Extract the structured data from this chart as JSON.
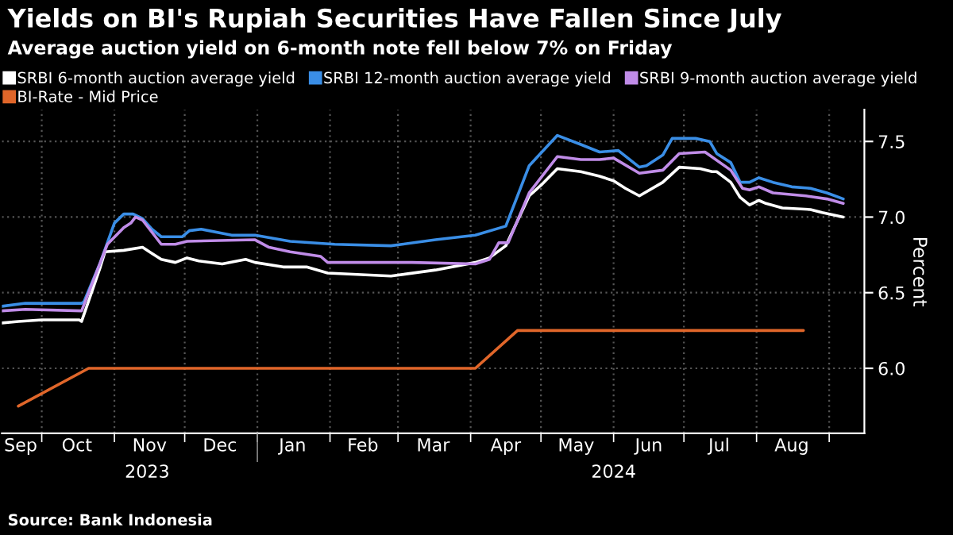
{
  "chart_data": {
    "type": "line",
    "title": "Yields on BI's Rupiah Securities Have Fallen Since July",
    "subtitle": "Average auction yield on 6-month note fell below 7% on Friday",
    "ylabel": "Percent",
    "annotations": [
      "Source: Bank Indonesia"
    ],
    "series": [
      {
        "name": "SRBI 6-month auction average yield",
        "color": "#ffffff",
        "x": [
          "2023-09-14",
          "2023-09-21",
          "2023-10-01",
          "2023-10-17",
          "2023-10-18",
          "2023-10-26",
          "2023-10-28",
          "2023-11-05",
          "2023-11-13",
          "2023-11-17",
          "2023-11-21",
          "2023-11-27",
          "2023-12-02",
          "2023-12-07",
          "2023-12-17",
          "2023-12-27",
          "2023-12-31",
          "2024-01-12",
          "2024-01-22",
          "2024-01-31",
          "2024-02-27",
          "2024-03-17",
          "2024-04-03",
          "2024-04-09",
          "2024-04-16",
          "2024-04-26",
          "2024-05-01",
          "2024-05-08",
          "2024-05-18",
          "2024-05-26",
          "2024-06-01",
          "2024-06-06",
          "2024-06-12",
          "2024-06-22",
          "2024-06-29",
          "2024-07-08",
          "2024-07-13",
          "2024-07-15",
          "2024-07-21",
          "2024-07-25",
          "2024-07-29",
          "2024-08-02",
          "2024-08-05",
          "2024-08-12",
          "2024-08-24",
          "2024-08-29",
          "2024-09-07"
        ],
        "values": [
          6.3,
          6.31,
          6.32,
          6.32,
          6.31,
          6.67,
          6.77,
          6.78,
          6.8,
          6.76,
          6.72,
          6.7,
          6.73,
          6.71,
          6.69,
          6.72,
          6.7,
          6.67,
          6.67,
          6.63,
          6.61,
          6.65,
          6.7,
          6.73,
          6.81,
          7.14,
          7.21,
          7.32,
          7.3,
          7.27,
          7.24,
          7.19,
          7.14,
          7.23,
          7.33,
          7.32,
          7.3,
          7.3,
          7.23,
          7.13,
          7.08,
          7.11,
          7.09,
          7.06,
          7.05,
          7.03,
          7.0
        ]
      },
      {
        "name": "SRBI 12-month auction average yield",
        "color": "#3a8ee6",
        "x": [
          "2023-09-14",
          "2023-09-24",
          "2023-10-18",
          "2023-10-19",
          "2023-10-26",
          "2023-11-01",
          "2023-11-05",
          "2023-11-09",
          "2023-11-13",
          "2023-11-17",
          "2023-11-21",
          "2023-11-30",
          "2023-12-03",
          "2023-12-08",
          "2023-12-21",
          "2023-12-31",
          "2024-01-15",
          "2024-02-03",
          "2024-02-27",
          "2024-03-17",
          "2024-04-03",
          "2024-04-16",
          "2024-04-26",
          "2024-05-08",
          "2024-05-18",
          "2024-05-26",
          "2024-06-03",
          "2024-06-12",
          "2024-06-15",
          "2024-06-22",
          "2024-06-26",
          "2024-07-06",
          "2024-07-12",
          "2024-07-15",
          "2024-07-21",
          "2024-07-25",
          "2024-07-29",
          "2024-08-02",
          "2024-08-08",
          "2024-08-16",
          "2024-08-24",
          "2024-08-31",
          "2024-09-07"
        ],
        "values": [
          6.41,
          6.43,
          6.43,
          6.44,
          6.7,
          6.96,
          7.02,
          7.02,
          6.99,
          6.92,
          6.87,
          6.87,
          6.91,
          6.92,
          6.88,
          6.88,
          6.84,
          6.82,
          6.81,
          6.85,
          6.88,
          6.94,
          7.34,
          7.54,
          7.48,
          7.43,
          7.44,
          7.33,
          7.34,
          7.41,
          7.52,
          7.52,
          7.5,
          7.42,
          7.36,
          7.23,
          7.23,
          7.26,
          7.23,
          7.2,
          7.19,
          7.16,
          7.12
        ]
      },
      {
        "name": "SRBI 9-month auction average yield",
        "color": "#c08ce8",
        "x": [
          "2023-09-14",
          "2023-09-24",
          "2023-10-18",
          "2023-10-26",
          "2023-10-29",
          "2023-11-05",
          "2023-11-08",
          "2023-11-10",
          "2023-11-13",
          "2023-11-17",
          "2023-11-21",
          "2023-11-27",
          "2023-12-02",
          "2023-12-31",
          "2024-01-06",
          "2024-01-15",
          "2024-01-28",
          "2024-01-31",
          "2024-03-07",
          "2024-04-03",
          "2024-04-09",
          "2024-04-13",
          "2024-04-17",
          "2024-04-26",
          "2024-05-08",
          "2024-05-18",
          "2024-05-26",
          "2024-06-01",
          "2024-06-12",
          "2024-06-22",
          "2024-06-29",
          "2024-07-10",
          "2024-07-21",
          "2024-07-26",
          "2024-07-29",
          "2024-08-02",
          "2024-08-08",
          "2024-08-22",
          "2024-08-31",
          "2024-09-07"
        ],
        "values": [
          6.38,
          6.39,
          6.38,
          6.7,
          6.82,
          6.93,
          6.96,
          7.0,
          6.98,
          6.9,
          6.82,
          6.82,
          6.84,
          6.85,
          6.8,
          6.77,
          6.74,
          6.7,
          6.7,
          6.69,
          6.72,
          6.83,
          6.83,
          7.16,
          7.4,
          7.38,
          7.38,
          7.39,
          7.29,
          7.31,
          7.42,
          7.43,
          7.31,
          7.19,
          7.18,
          7.2,
          7.16,
          7.14,
          7.12,
          7.09
        ]
      },
      {
        "name": "BI-Rate - Mid Price",
        "color": "#e0662a",
        "x": [
          "2023-09-21",
          "2023-10-21",
          "2024-04-03",
          "2024-04-21",
          "2024-08-21"
        ],
        "values": [
          5.75,
          6.0,
          6.0,
          6.25,
          6.25
        ]
      }
    ],
    "xlim": [
      "2023-09-14",
      "2024-09-16"
    ],
    "xticks": [
      {
        "value": "2023-09-22",
        "label": "Sep"
      },
      {
        "value": "2023-10-01",
        "label": null
      },
      {
        "value": "2023-10-16",
        "label": "Oct"
      },
      {
        "value": "2023-11-01",
        "label": null
      },
      {
        "value": "2023-11-16",
        "label": "Nov"
      },
      {
        "value": "2023-12-01",
        "label": null
      },
      {
        "value": "2023-12-16",
        "label": "Dec"
      },
      {
        "value": "2024-01-01",
        "label": null
      },
      {
        "value": "2024-01-16",
        "label": "Jan"
      },
      {
        "value": "2024-02-01",
        "label": null
      },
      {
        "value": "2024-02-15",
        "label": "Feb"
      },
      {
        "value": "2024-03-01",
        "label": null
      },
      {
        "value": "2024-03-16",
        "label": "Mar"
      },
      {
        "value": "2024-04-01",
        "label": null
      },
      {
        "value": "2024-04-16",
        "label": "Apr"
      },
      {
        "value": "2024-05-01",
        "label": null
      },
      {
        "value": "2024-05-16",
        "label": "May"
      },
      {
        "value": "2024-06-01",
        "label": null
      },
      {
        "value": "2024-06-16",
        "label": "Jun"
      },
      {
        "value": "2024-07-01",
        "label": null
      },
      {
        "value": "2024-07-16",
        "label": "Jul"
      },
      {
        "value": "2024-08-01",
        "label": null
      },
      {
        "value": "2024-08-16",
        "label": "Aug"
      },
      {
        "value": "2024-09-01",
        "label": null
      }
    ],
    "x2lim": [
      "2023-09-14",
      "2024-09-16"
    ],
    "x2ticks": [
      {
        "value": "2023-11-15",
        "label": "2023"
      },
      {
        "value": "2024-01-01",
        "label": null
      },
      {
        "value": "2024-06-01",
        "label": "2024"
      }
    ],
    "ylim": [
      5.57,
      7.71
    ],
    "yticks": [
      {
        "value": 6.0,
        "label": "6.0"
      },
      {
        "value": 6.5,
        "label": "6.5"
      },
      {
        "value": 7.0,
        "label": "7.0"
      },
      {
        "value": 7.5,
        "label": "7.5"
      }
    ],
    "grid": true,
    "legend": "top left",
    "marker": "none",
    "line_style": "solid"
  }
}
